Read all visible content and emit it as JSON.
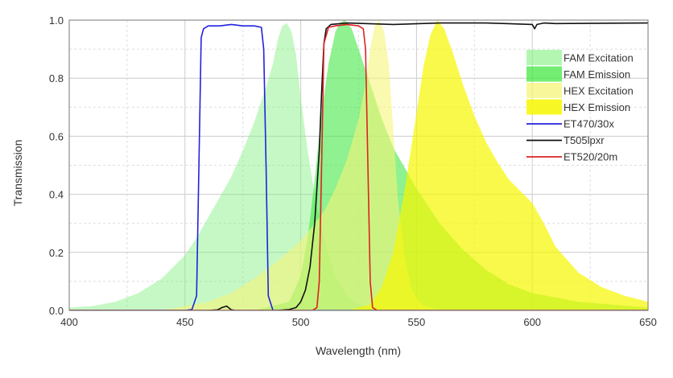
{
  "chart_data": {
    "type": "area",
    "xlabel": "Wavelength (nm)",
    "ylabel": "Transmission",
    "xlim": [
      400,
      650
    ],
    "ylim": [
      0,
      1.0
    ],
    "x_ticks": [
      400,
      450,
      500,
      550,
      600,
      650
    ],
    "y_ticks": [
      0.0,
      0.2,
      0.4,
      0.6,
      0.8,
      1.0
    ],
    "x_tick_labels": [
      "400",
      "450",
      "500",
      "550",
      "600",
      "650"
    ],
    "y_tick_labels": [
      "0.0",
      "0.2",
      "0.4",
      "0.6",
      "0.8",
      "1.0"
    ],
    "grid": true,
    "legend_position": "top-right",
    "series": [
      {
        "name": "FAM Excitation",
        "kind": "area",
        "color": "#7ef07e",
        "opacity": 0.45,
        "points": [
          [
            400,
            0.01
          ],
          [
            410,
            0.015
          ],
          [
            420,
            0.03
          ],
          [
            430,
            0.06
          ],
          [
            440,
            0.11
          ],
          [
            450,
            0.19
          ],
          [
            455,
            0.25
          ],
          [
            460,
            0.32
          ],
          [
            465,
            0.39
          ],
          [
            470,
            0.46
          ],
          [
            475,
            0.55
          ],
          [
            480,
            0.65
          ],
          [
            485,
            0.77
          ],
          [
            488,
            0.85
          ],
          [
            490,
            0.93
          ],
          [
            492,
            0.98
          ],
          [
            494,
            0.99
          ],
          [
            496,
            0.96
          ],
          [
            498,
            0.88
          ],
          [
            500,
            0.73
          ],
          [
            503,
            0.55
          ],
          [
            506,
            0.4
          ],
          [
            510,
            0.25
          ],
          [
            515,
            0.12
          ],
          [
            520,
            0.05
          ],
          [
            525,
            0.02
          ],
          [
            530,
            0.01
          ],
          [
            540,
            0.0
          ],
          [
            650,
            0.0
          ]
        ]
      },
      {
        "name": "FAM Emission",
        "kind": "area",
        "color": "#44e844",
        "opacity": 0.6,
        "points": [
          [
            480,
            0.0
          ],
          [
            495,
            0.03
          ],
          [
            500,
            0.12
          ],
          [
            503,
            0.25
          ],
          [
            506,
            0.45
          ],
          [
            509,
            0.68
          ],
          [
            512,
            0.85
          ],
          [
            515,
            0.96
          ],
          [
            517,
            0.99
          ],
          [
            519,
            1.0
          ],
          [
            522,
            0.97
          ],
          [
            525,
            0.9
          ],
          [
            530,
            0.78
          ],
          [
            535,
            0.66
          ],
          [
            540,
            0.56
          ],
          [
            550,
            0.42
          ],
          [
            560,
            0.3
          ],
          [
            570,
            0.21
          ],
          [
            580,
            0.14
          ],
          [
            590,
            0.09
          ],
          [
            600,
            0.06
          ],
          [
            620,
            0.03
          ],
          [
            650,
            0.01
          ]
        ]
      },
      {
        "name": "HEX Excitation",
        "kind": "area",
        "color": "#f5f57a",
        "opacity": 0.6,
        "points": [
          [
            440,
            0.0
          ],
          [
            460,
            0.03
          ],
          [
            470,
            0.06
          ],
          [
            480,
            0.11
          ],
          [
            490,
            0.17
          ],
          [
            500,
            0.24
          ],
          [
            510,
            0.34
          ],
          [
            515,
            0.42
          ],
          [
            520,
            0.52
          ],
          [
            525,
            0.66
          ],
          [
            528,
            0.78
          ],
          [
            530,
            0.9
          ],
          [
            532,
            0.98
          ],
          [
            534,
            1.0
          ],
          [
            536,
            0.96
          ],
          [
            538,
            0.85
          ],
          [
            540,
            0.62
          ],
          [
            542,
            0.38
          ],
          [
            545,
            0.18
          ],
          [
            548,
            0.07
          ],
          [
            552,
            0.02
          ],
          [
            560,
            0.0
          ],
          [
            650,
            0.0
          ]
        ]
      },
      {
        "name": "HEX Emission",
        "kind": "area",
        "color": "#f7f700",
        "opacity": 0.7,
        "points": [
          [
            520,
            0.0
          ],
          [
            530,
            0.02
          ],
          [
            535,
            0.08
          ],
          [
            540,
            0.2
          ],
          [
            545,
            0.42
          ],
          [
            550,
            0.68
          ],
          [
            553,
            0.84
          ],
          [
            556,
            0.95
          ],
          [
            559,
            1.0
          ],
          [
            562,
            0.97
          ],
          [
            566,
            0.88
          ],
          [
            570,
            0.78
          ],
          [
            575,
            0.67
          ],
          [
            580,
            0.58
          ],
          [
            585,
            0.51
          ],
          [
            590,
            0.45
          ],
          [
            595,
            0.41
          ],
          [
            600,
            0.37
          ],
          [
            605,
            0.3
          ],
          [
            610,
            0.22
          ],
          [
            620,
            0.13
          ],
          [
            630,
            0.08
          ],
          [
            640,
            0.05
          ],
          [
            650,
            0.03
          ]
        ]
      },
      {
        "name": "ET470/30x",
        "kind": "line",
        "color": "#2222dd",
        "points": [
          [
            400,
            0.0
          ],
          [
            450,
            0.0
          ],
          [
            453,
            0.003
          ],
          [
            455,
            0.05
          ],
          [
            456,
            0.5
          ],
          [
            457,
            0.94
          ],
          [
            458,
            0.97
          ],
          [
            460,
            0.98
          ],
          [
            465,
            0.98
          ],
          [
            470,
            0.985
          ],
          [
            475,
            0.98
          ],
          [
            480,
            0.98
          ],
          [
            483,
            0.975
          ],
          [
            484,
            0.9
          ],
          [
            485,
            0.5
          ],
          [
            486,
            0.05
          ],
          [
            488,
            0.0
          ],
          [
            650,
            0.0
          ]
        ]
      },
      {
        "name": "T505lpxr",
        "kind": "line",
        "color": "#111111",
        "points": [
          [
            400,
            0.0
          ],
          [
            450,
            0.0
          ],
          [
            460,
            0.0
          ],
          [
            464,
            0.002
          ],
          [
            466,
            0.01
          ],
          [
            468,
            0.015
          ],
          [
            470,
            0.002
          ],
          [
            472,
            0.0
          ],
          [
            490,
            0.0
          ],
          [
            495,
            0.003
          ],
          [
            498,
            0.01
          ],
          [
            500,
            0.03
          ],
          [
            502,
            0.07
          ],
          [
            504,
            0.15
          ],
          [
            506,
            0.3
          ],
          [
            508,
            0.55
          ],
          [
            509,
            0.75
          ],
          [
            510,
            0.92
          ],
          [
            511,
            0.97
          ],
          [
            513,
            0.985
          ],
          [
            520,
            0.99
          ],
          [
            540,
            0.985
          ],
          [
            560,
            0.99
          ],
          [
            580,
            0.99
          ],
          [
            600,
            0.985
          ],
          [
            601,
            0.97
          ],
          [
            602,
            0.985
          ],
          [
            605,
            0.99
          ],
          [
            610,
            0.988
          ],
          [
            650,
            0.99
          ]
        ]
      },
      {
        "name": "ET520/20m",
        "kind": "line",
        "color": "#dd2222",
        "points": [
          [
            400,
            0.0
          ],
          [
            505,
            0.0
          ],
          [
            507,
            0.01
          ],
          [
            508,
            0.1
          ],
          [
            509,
            0.5
          ],
          [
            510,
            0.92
          ],
          [
            512,
            0.975
          ],
          [
            515,
            0.98
          ],
          [
            520,
            0.985
          ],
          [
            525,
            0.98
          ],
          [
            527,
            0.97
          ],
          [
            528,
            0.9
          ],
          [
            529,
            0.5
          ],
          [
            530,
            0.1
          ],
          [
            531,
            0.01
          ],
          [
            533,
            0.0
          ],
          [
            650,
            0.0
          ]
        ]
      }
    ]
  }
}
